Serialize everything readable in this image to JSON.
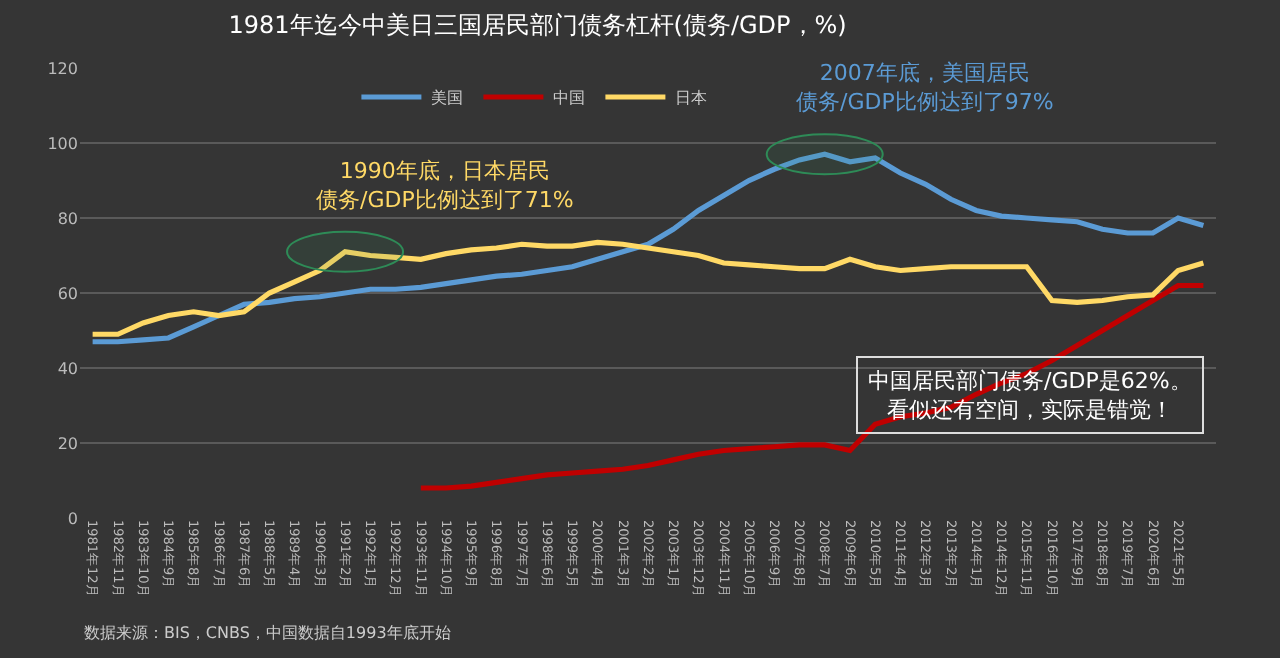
{
  "chart_data": {
    "type": "line",
    "title": "1981年迄今中美日三国居民部门债务杠杆(债务/GDP，%)",
    "categories": [
      "1981年12月",
      "1982年11月",
      "1983年10月",
      "1984年9月",
      "1985年8月",
      "1986年7月",
      "1987年6月",
      "1988年5月",
      "1989年4月",
      "1990年3月",
      "1991年2月",
      "1992年1月",
      "1992年12月",
      "1993年11月",
      "1994年10月",
      "1995年9月",
      "1996年8月",
      "1997年7月",
      "1998年6月",
      "1999年5月",
      "2000年4月",
      "2001年3月",
      "2002年2月",
      "2003年1月",
      "2003年12月",
      "2004年11月",
      "2005年10月",
      "2006年9月",
      "2007年8月",
      "2008年7月",
      "2009年6月",
      "2010年5月",
      "2011年4月",
      "2012年3月",
      "2013年2月",
      "2014年1月",
      "2014年12月",
      "2015年11月",
      "2016年10月",
      "2017年9月",
      "2018年8月",
      "2019年7月",
      "2020年6月",
      "2021年5月",
      null
    ],
    "series": [
      {
        "name": "美国",
        "color": "#5b9bd5",
        "values": [
          47,
          47,
          47.5,
          48,
          51,
          54,
          57,
          57.5,
          58.5,
          59,
          60,
          61,
          61,
          61.5,
          62.5,
          63.5,
          64.5,
          65,
          66,
          67,
          69,
          71,
          73,
          77,
          82,
          86,
          90,
          93,
          95.5,
          97,
          95,
          96,
          92,
          89,
          85,
          82,
          80.5,
          80,
          79.5,
          79,
          77,
          76,
          76,
          80,
          78
        ]
      },
      {
        "name": "中国",
        "color": "#c00000",
        "values": [
          null,
          null,
          null,
          null,
          null,
          null,
          null,
          null,
          null,
          null,
          null,
          null,
          null,
          8,
          8,
          8.5,
          9.5,
          10.5,
          11.5,
          12,
          12.5,
          13,
          14,
          15.5,
          17,
          18,
          18.5,
          19,
          19.5,
          19.5,
          18,
          25,
          27,
          28,
          29.5,
          33,
          36,
          38.5,
          42,
          46,
          50,
          54,
          58,
          62,
          62
        ]
      },
      {
        "name": "日本",
        "color": "#ffd966",
        "values": [
          49,
          49,
          52,
          54,
          55,
          54,
          55,
          60,
          63,
          66,
          71,
          70,
          69.5,
          69,
          70.5,
          71.5,
          72,
          73,
          72.5,
          72.5,
          73.5,
          73,
          72,
          71,
          70,
          68,
          67.5,
          67,
          66.5,
          66.5,
          69,
          67,
          66,
          66.5,
          67,
          67,
          67,
          67,
          58,
          57.5,
          58,
          59,
          59.5,
          66,
          68
        ]
      }
    ],
    "ylim": [
      0,
      120
    ],
    "yticks": [
      0,
      20,
      40,
      60,
      80,
      100,
      120
    ],
    "grid": "y",
    "legend": "top",
    "annotations": [
      {
        "text": "1990年底，日本居民债务/GDP比例达到了71%",
        "x": "1991年2月",
        "y": 71
      },
      {
        "text": "2007年底，美国居民债务/GDP比例达到了97%",
        "x": "2008年7月",
        "y": 97
      },
      "中国居民部门债务/GDP是62%。看似还有空间，实际是错觉！",
      "数据来源：BIS，CNBS，中国数据自1993年底开始"
    ]
  }
}
